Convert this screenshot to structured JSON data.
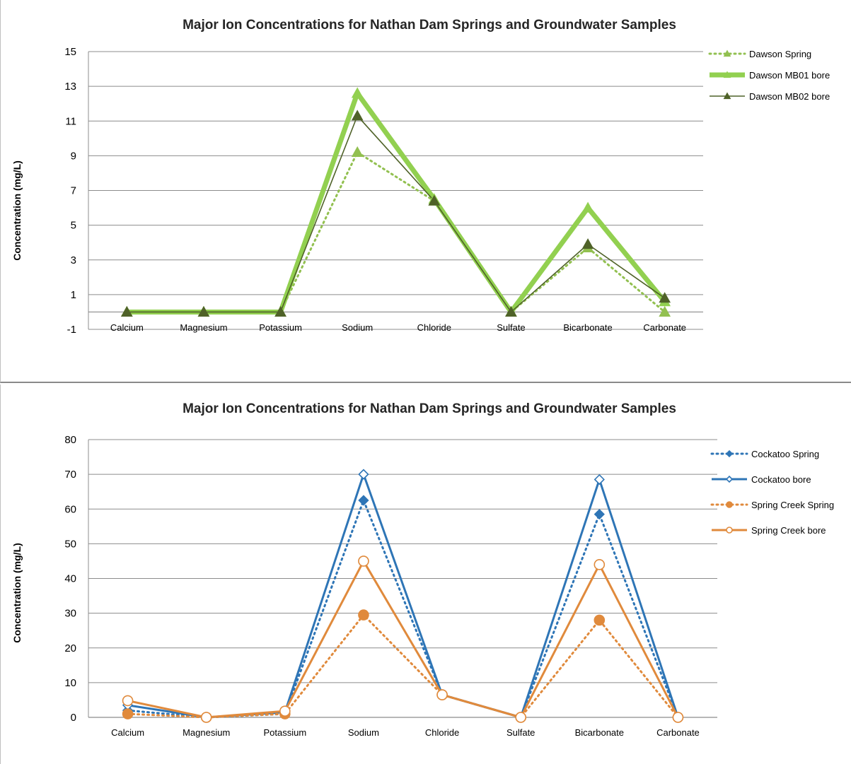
{
  "chart_data": [
    {
      "type": "line",
      "title": "Major Ion Concentrations for Nathan Dam Springs and Groundwater Samples",
      "xlabel": "",
      "ylabel": "Concentration (mg/L)",
      "ylim": [
        -1,
        15
      ],
      "yticks": [
        -1,
        1,
        3,
        5,
        7,
        9,
        11,
        13,
        15
      ],
      "grid": true,
      "legend_position": "right",
      "categories": [
        "Calcium",
        "Magnesium",
        "Potassium",
        "Sodium",
        "Chloride",
        "Sulfate",
        "Bicarbonate",
        "Carbonate"
      ],
      "series": [
        {
          "name": "Dawson Spring",
          "values": [
            0,
            0,
            0,
            9.2,
            6.4,
            0,
            3.7,
            0
          ],
          "color": "#92c050",
          "style": "dotted",
          "marker": "triangle"
        },
        {
          "name": "Dawson MB01 bore",
          "values": [
            0,
            0,
            0,
            12.6,
            6.5,
            0,
            6.0,
            0.6
          ],
          "color": "#92d050",
          "style": "thick-solid",
          "marker": "triangle"
        },
        {
          "name": "Dawson MB02 bore",
          "values": [
            0,
            0,
            0,
            11.3,
            6.4,
            0,
            3.9,
            0.8
          ],
          "color": "#4f6228",
          "style": "solid",
          "marker": "triangle"
        }
      ]
    },
    {
      "type": "line",
      "title": "Major Ion Concentrations for Nathan Dam Springs and Groundwater Samples",
      "xlabel": "",
      "ylabel": "Concentration (mg/L)",
      "ylim": [
        0,
        80
      ],
      "yticks": [
        0,
        10,
        20,
        30,
        40,
        50,
        60,
        70,
        80
      ],
      "grid": true,
      "legend_position": "right",
      "categories": [
        "Calcium",
        "Magnesium",
        "Potassium",
        "Sodium",
        "Chloride",
        "Sulfate",
        "Bicarbonate",
        "Carbonate"
      ],
      "series": [
        {
          "name": "Cockatoo Spring",
          "values": [
            2,
            0,
            1,
            62.5,
            6.5,
            0,
            58.5,
            0
          ],
          "color": "#2e75b6",
          "style": "dotted",
          "marker": "diamond-filled"
        },
        {
          "name": "Cockatoo bore",
          "values": [
            3.5,
            0,
            1.5,
            70,
            6.5,
            0,
            68.5,
            0
          ],
          "color": "#2e75b6",
          "style": "solid",
          "marker": "diamond-open"
        },
        {
          "name": "Spring Creek Spring",
          "values": [
            1,
            0,
            1,
            29.5,
            6.5,
            0,
            28,
            0
          ],
          "color": "#e08a3c",
          "style": "dotted",
          "marker": "circle-filled"
        },
        {
          "name": "Spring Creek bore",
          "values": [
            4.8,
            0,
            1.8,
            45,
            6.5,
            0,
            44,
            0
          ],
          "color": "#e08a3c",
          "style": "solid",
          "marker": "circle-open"
        }
      ]
    }
  ]
}
